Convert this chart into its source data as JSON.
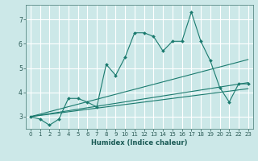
{
  "title": "",
  "xlabel": "Humidex (Indice chaleur)",
  "bg_color": "#cce8e8",
  "grid_color": "#ffffff",
  "line_color": "#1a7a6e",
  "xlim": [
    -0.5,
    23.5
  ],
  "ylim": [
    2.5,
    7.6
  ],
  "yticks": [
    3,
    4,
    5,
    6,
    7
  ],
  "xticks": [
    0,
    1,
    2,
    3,
    4,
    5,
    6,
    7,
    8,
    9,
    10,
    11,
    12,
    13,
    14,
    15,
    16,
    17,
    18,
    19,
    20,
    21,
    22,
    23
  ],
  "series1_x": [
    0,
    1,
    2,
    3,
    4,
    5,
    6,
    7,
    8,
    9,
    10,
    11,
    12,
    13,
    14,
    15,
    16,
    17,
    18,
    19,
    20,
    21,
    22,
    23
  ],
  "series1_y": [
    3.0,
    2.9,
    2.65,
    2.9,
    3.75,
    3.75,
    3.6,
    3.4,
    5.15,
    4.7,
    5.45,
    6.45,
    6.45,
    6.3,
    5.7,
    6.1,
    6.1,
    7.3,
    6.1,
    5.3,
    4.2,
    3.6,
    4.35,
    4.35
  ],
  "series2_x": [
    0,
    23
  ],
  "series2_y": [
    3.0,
    4.15
  ],
  "series3_x": [
    0,
    23
  ],
  "series3_y": [
    3.0,
    5.35
  ],
  "series4_x": [
    0,
    23
  ],
  "series4_y": [
    3.0,
    4.4
  ],
  "xlabel_fontsize": 6.0,
  "xlabel_fontweight": "bold",
  "tick_fontsize": 5.0,
  "ytick_fontsize": 5.5
}
